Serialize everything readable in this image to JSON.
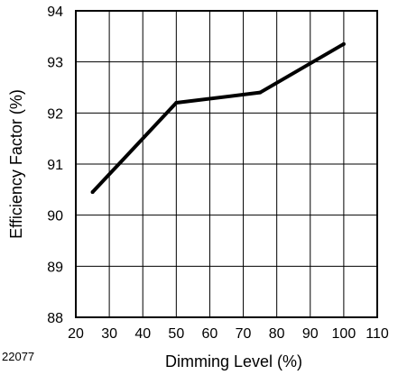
{
  "chart_data": {
    "type": "line",
    "title": "",
    "xlabel": "Dimming Level (%)",
    "ylabel": "Efficiency Factor (%)",
    "figure_code": "22077",
    "xlim": [
      20,
      110
    ],
    "ylim": [
      88,
      94
    ],
    "x_ticks": [
      "20",
      "30",
      "40",
      "50",
      "60",
      "70",
      "80",
      "90",
      "100",
      "110"
    ],
    "y_ticks": [
      "88",
      "89",
      "90",
      "91",
      "92",
      "93",
      "94"
    ],
    "grid": true,
    "legend": "none",
    "series": [
      {
        "x": [
          25,
          50,
          75,
          100
        ],
        "y": [
          90.45,
          92.2,
          92.4,
          93.35
        ],
        "color": "#000000"
      }
    ]
  }
}
